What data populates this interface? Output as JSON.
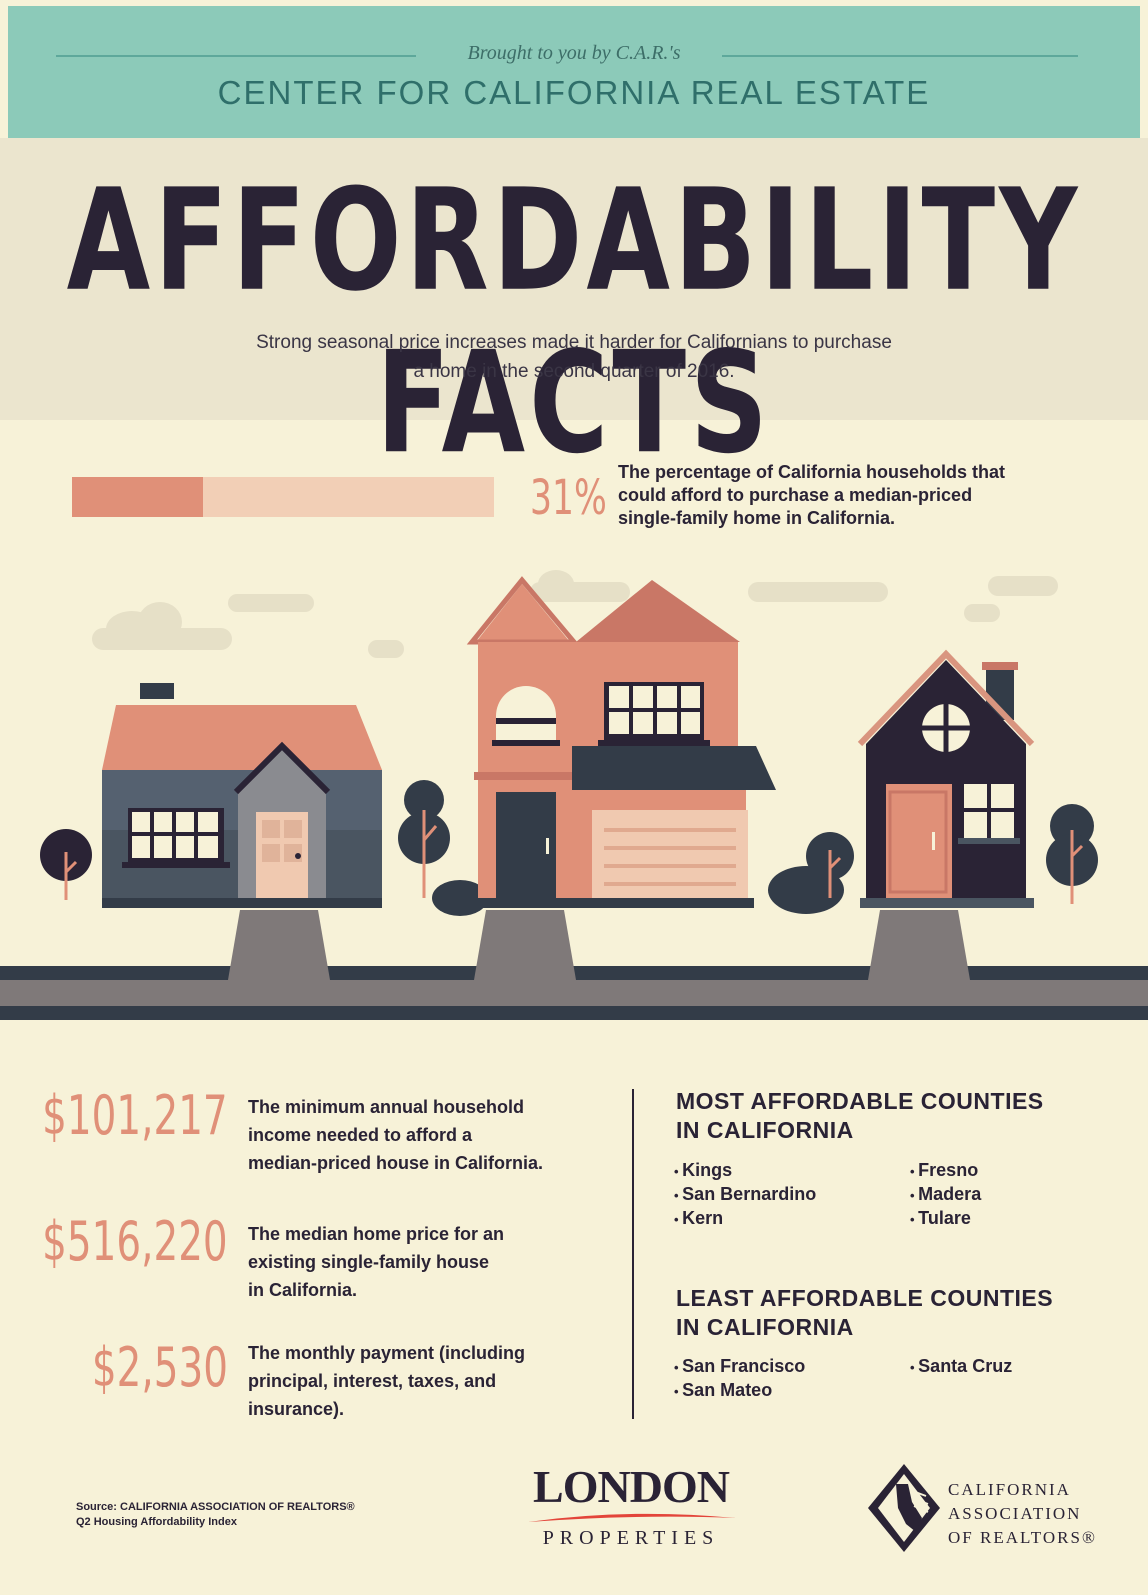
{
  "header": {
    "brought_by": "Brought to you by C.A.R.'s",
    "center_name": "CENTER FOR CALIFORNIA REAL ESTATE"
  },
  "hero": {
    "title": "AFFORDABILITY FACTS",
    "subtitle_line1": "Strong seasonal price increases made it harder for Californians to purchase",
    "subtitle_line2": "a home in the second quarter of 2016."
  },
  "affordability": {
    "percent_label": "31%",
    "percent_value": 31,
    "description_line1": "The percentage of California households that",
    "description_line2": "could afford to purchase a median-priced",
    "description_line3": "single-family home in California."
  },
  "stats": [
    {
      "value": "$101,217",
      "line1": "The minimum annual household",
      "line2": "income needed to afford a",
      "line3": "median-priced house in California."
    },
    {
      "value": "$516,220",
      "line1": "The median home price for an",
      "line2": "existing single-family house",
      "line3": "in California."
    },
    {
      "value": "$2,530",
      "line1": "The monthly payment (including",
      "line2": "principal, interest, taxes, and",
      "line3": "insurance)."
    }
  ],
  "most_affordable": {
    "heading_line1": "MOST AFFORDABLE COUNTIES",
    "heading_line2": "IN CALIFORNIA",
    "counties": [
      "Kings",
      "San Bernardino",
      "Kern",
      "Fresno",
      "Madera",
      "Tulare"
    ]
  },
  "least_affordable": {
    "heading_line1": "LEAST AFFORDABLE COUNTIES",
    "heading_line2": "IN CALIFORNIA",
    "counties": [
      "San Francisco",
      "San Mateo",
      "Santa Cruz"
    ]
  },
  "footer": {
    "source_line1": "Source: CALIFORNIA ASSOCIATION OF REALTORS®",
    "source_line2": "Q2 Housing Affordability Index",
    "london_name": "LONDON",
    "london_sub": "PROPERTIES",
    "car_line1": "CALIFORNIA",
    "car_line2": "ASSOCIATION",
    "car_line3": "OF REALTORS®"
  },
  "colors": {
    "teal": "#8ccab9",
    "cream": "#f7f2d8",
    "salmon": "#e09078",
    "navy": "#2a2335",
    "slate": "#4a5561"
  }
}
